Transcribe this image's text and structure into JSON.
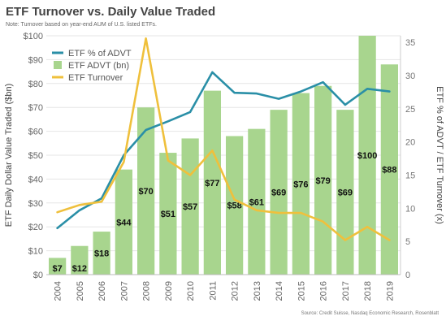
{
  "title": "ETF Turnover vs. Daily Value Traded",
  "note": "Note: Turnover based on year-end AUM of U.S. listed ETFs.",
  "source": "Source: Credit Suisse, Nasdaq Economic Research, Rosenblatt",
  "chart_data": {
    "type": "bar",
    "categories": [
      "2004",
      "2005",
      "2006",
      "2007",
      "2008",
      "2009",
      "2010",
      "2011",
      "2012",
      "2013",
      "2014",
      "2015",
      "2016",
      "2017",
      "2018",
      "2019"
    ],
    "ylabel": "ETF Daily Dollar Value Traded ($bn)",
    "y2label": "ETF % of ADVT / ETF Turnover (x)",
    "ylim": [
      0,
      100
    ],
    "yticks": [
      "$0",
      "$10",
      "$20",
      "$30",
      "$40",
      "$50",
      "$60",
      "$70",
      "$80",
      "$90",
      "$100"
    ],
    "y2lim": [
      0,
      36
    ],
    "y2ticks": [
      "0",
      "5",
      "10",
      "15",
      "20",
      "25",
      "30",
      "35"
    ],
    "legend_position": "top-left",
    "series": [
      {
        "name": "ETF % of ADVT",
        "type": "line",
        "axis": "right",
        "color": "#2a8fa7",
        "values": [
          7,
          9.7,
          11.5,
          18,
          21.8,
          23.1,
          24.5,
          30.5,
          27.4,
          27.3,
          26.5,
          27.6,
          29,
          25.6,
          28,
          27.6
        ]
      },
      {
        "name": "ETF ADVT (bn)",
        "type": "bar",
        "axis": "left",
        "color": "#a8d58e",
        "values": [
          7,
          12,
          18,
          44,
          70,
          51,
          57,
          77,
          58,
          61,
          69,
          76,
          79,
          69,
          100,
          88
        ],
        "labels": [
          "$7",
          "$12",
          "$18",
          "$44",
          "$70",
          "$51",
          "$57",
          "$77",
          "$58",
          "$61",
          "$69",
          "$76",
          "$79",
          "$69",
          "$100",
          "$88"
        ]
      },
      {
        "name": "ETF Turnover",
        "type": "line",
        "axis": "right",
        "color": "#efc03c",
        "values": [
          9.4,
          10.5,
          11,
          17,
          35.6,
          17.2,
          15,
          18.7,
          11.3,
          9.7,
          9.3,
          9.3,
          8,
          5.2,
          7.2,
          5.2
        ]
      }
    ]
  }
}
